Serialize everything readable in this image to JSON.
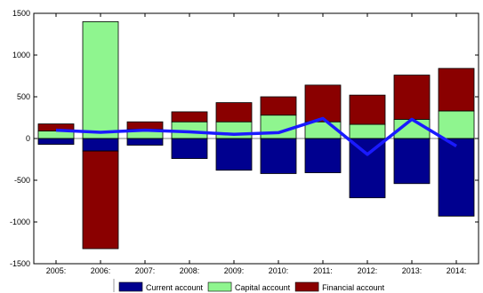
{
  "chart_data": {
    "type": "bar",
    "stacked": true,
    "categories": [
      "2005:",
      "2006:",
      "2007:",
      "2008:",
      "2009:",
      "2010:",
      "2011:",
      "2012:",
      "2013:",
      "2014:"
    ],
    "ylim": [
      -1500,
      1500
    ],
    "yticks": [
      -1500,
      -1000,
      -500,
      0,
      500,
      1000,
      1500
    ],
    "grid": false,
    "legend_position": "bottom",
    "series": [
      {
        "name": "Current account",
        "kind": "bar",
        "color": "#00008f",
        "values": [
          -70,
          -150,
          -80,
          -240,
          -380,
          -420,
          -410,
          -710,
          -540,
          -930
        ]
      },
      {
        "name": "Capital account",
        "kind": "bar",
        "color": "#8ff58f",
        "values": [
          90,
          1400,
          110,
          200,
          200,
          280,
          200,
          170,
          230,
          330
        ]
      },
      {
        "name": "Financial account",
        "kind": "bar",
        "color": "#8a0000",
        "values": [
          85,
          -1170,
          90,
          120,
          230,
          220,
          440,
          350,
          530,
          510
        ]
      }
    ],
    "line": {
      "color": "#1a1aff",
      "values": [
        100,
        75,
        100,
        80,
        50,
        70,
        240,
        -190,
        230,
        -90
      ]
    }
  }
}
